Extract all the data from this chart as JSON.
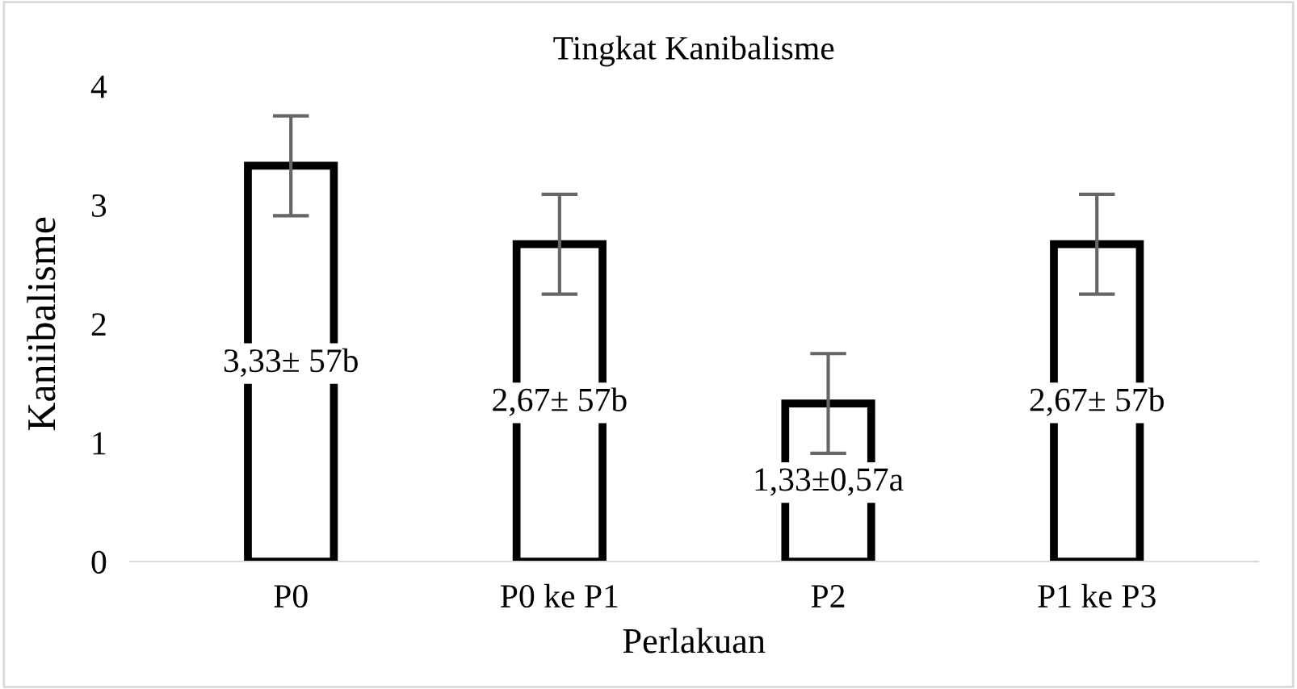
{
  "chart_data": {
    "type": "bar",
    "title": "Tingkat Kanibalisme",
    "xlabel": "Perlakuan",
    "ylabel": "Kaniibalisme",
    "categories": [
      "P0",
      "P0 ke P1",
      "P2",
      "P1 ke P3"
    ],
    "values": [
      3.33,
      2.67,
      1.33,
      2.67
    ],
    "errors": [
      0.42,
      0.42,
      0.42,
      0.42
    ],
    "value_labels": [
      "3,33± 57b",
      "2,67± 57b",
      "1,33±0,57a",
      "2,67± 57b"
    ],
    "color": "#ffffff",
    "ylim": [
      0,
      4
    ],
    "yticks": [
      0,
      1,
      2,
      3,
      4
    ],
    "grid": false
  }
}
